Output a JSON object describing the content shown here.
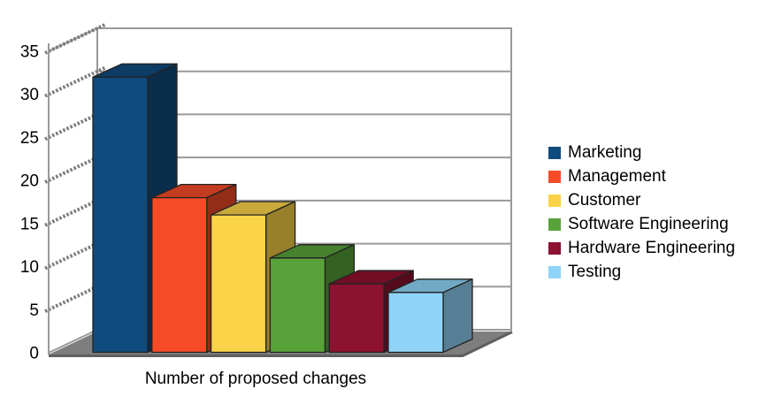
{
  "chart_data": {
    "type": "bar",
    "style": "3d-column",
    "title": "",
    "xlabel": "Number of proposed changes",
    "ylabel": "",
    "categories": [
      "Marketing",
      "Management",
      "Customer",
      "Software Engineering",
      "Hardware Engineering",
      "Testing"
    ],
    "values": [
      32,
      18,
      16,
      11,
      8,
      7
    ],
    "colors": [
      "#104B7D",
      "#F54B27",
      "#FBD348",
      "#58A339",
      "#8D1130",
      "#8FD4F8"
    ],
    "ylim": [
      0,
      35
    ],
    "yticks": [
      0,
      5,
      10,
      15,
      20,
      25,
      30,
      35
    ],
    "grid": true,
    "legend_position": "right",
    "background": "#FFFFFF",
    "wall_color": "#FFFFFF",
    "floor_color": "#7E7E7E",
    "grid_color": "#9A9A9A"
  }
}
